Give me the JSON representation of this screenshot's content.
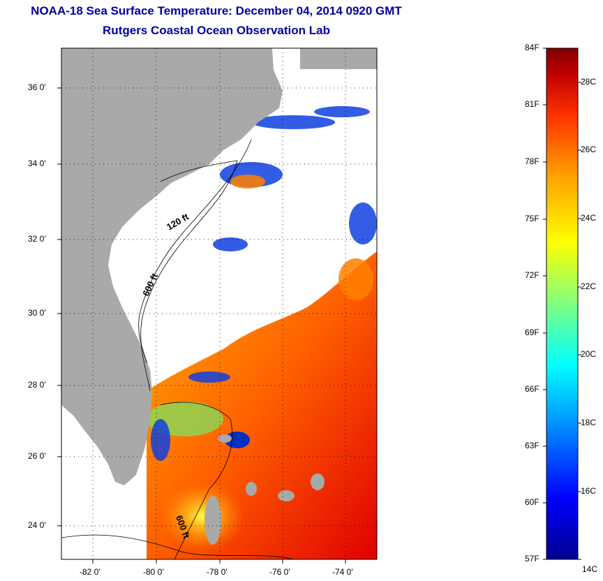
{
  "header": {
    "title": "NOAA-18 Sea Surface Temperature:  December 04, 2014 0920 GMT",
    "subtitle": "Rutgers Coastal Ocean Observation Lab"
  },
  "map": {
    "lat_ticks": [
      "36 0'",
      "34 0'",
      "32 0'",
      "30 0'",
      "28 0'",
      "26 0'",
      "24 0'"
    ],
    "lon_ticks": [
      "-82 0'",
      "-80 0'",
      "-78 0'",
      "-76 0'",
      "-74 0'"
    ],
    "isobath_labels": [
      "120 ft",
      "600 ft",
      "600 ft"
    ],
    "colors": {
      "land": "#a9a9a9",
      "cloud": "#ffffff",
      "frame": "#000000"
    }
  },
  "colorbar": {
    "fahrenheit_labels": [
      "84F",
      "81F",
      "78F",
      "75F",
      "72F",
      "69F",
      "66F",
      "63F",
      "60F",
      "57F"
    ],
    "celsius_labels": [
      "28C",
      "26C",
      "24C",
      "22C",
      "20C",
      "18C",
      "16C",
      "14C"
    ],
    "colors": [
      "#00008f",
      "#0000ff",
      "#00a0ff",
      "#00ffff",
      "#80ff80",
      "#ffff00",
      "#ffa000",
      "#ff3000",
      "#a00000",
      "#800000"
    ]
  }
}
